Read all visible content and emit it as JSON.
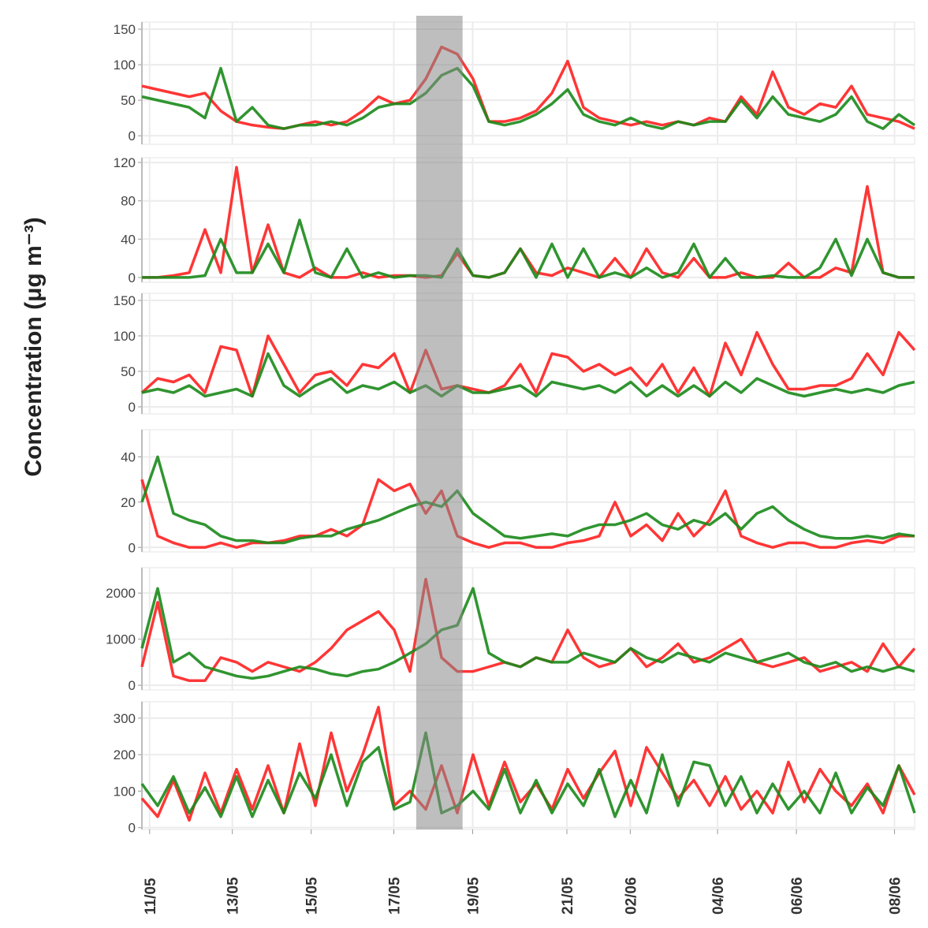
{
  "chart_data": {
    "type": "line",
    "ylabel": "Concentration (μg m⁻³)",
    "x_range": [
      0,
      100
    ],
    "x_ticks": [
      {
        "x": 1,
        "label": "11/05"
      },
      {
        "x": 11.7,
        "label": "13/05"
      },
      {
        "x": 21.9,
        "label": "15/05"
      },
      {
        "x": 32.6,
        "label": "17/05"
      },
      {
        "x": 42.8,
        "label": "19/05"
      },
      {
        "x": 55,
        "label": "21/05"
      },
      {
        "x": 63.2,
        "label": "02/06"
      },
      {
        "x": 74.5,
        "label": "04/06"
      },
      {
        "x": 84.7,
        "label": "06/06"
      },
      {
        "x": 97.4,
        "label": "08/06"
      }
    ],
    "highlight_band": [
      35.5,
      41.5
    ],
    "series_colors": {
      "red": "#ff2020",
      "green": "#1a8a1a"
    },
    "panels": [
      {
        "ylim": [
          -12,
          160
        ],
        "yticks": [
          0,
          50,
          100,
          150
        ],
        "red": [
          70,
          65,
          60,
          55,
          60,
          35,
          20,
          15,
          12,
          10,
          15,
          20,
          15,
          20,
          35,
          55,
          45,
          50,
          80,
          125,
          115,
          80,
          20,
          20,
          25,
          35,
          60,
          105,
          40,
          25,
          20,
          15,
          20,
          15,
          20,
          15,
          25,
          20,
          55,
          30,
          90,
          40,
          30,
          45,
          40,
          70,
          30,
          25,
          20,
          10
        ],
        "green": [
          55,
          50,
          45,
          40,
          25,
          95,
          20,
          40,
          15,
          10,
          15,
          15,
          20,
          15,
          25,
          40,
          45,
          45,
          60,
          85,
          95,
          70,
          20,
          15,
          20,
          30,
          45,
          65,
          30,
          20,
          15,
          25,
          15,
          10,
          20,
          15,
          20,
          20,
          50,
          25,
          55,
          30,
          25,
          20,
          30,
          55,
          20,
          10,
          30,
          15
        ]
      },
      {
        "ylim": [
          -5,
          125
        ],
        "yticks": [
          0,
          40,
          80,
          120
        ],
        "red": [
          0,
          0,
          2,
          5,
          50,
          5,
          115,
          5,
          55,
          5,
          0,
          10,
          0,
          0,
          5,
          0,
          2,
          2,
          0,
          2,
          25,
          2,
          0,
          5,
          30,
          5,
          2,
          10,
          5,
          0,
          20,
          0,
          30,
          5,
          0,
          20,
          0,
          0,
          5,
          0,
          0,
          15,
          0,
          0,
          10,
          5,
          95,
          5,
          0,
          0
        ],
        "green": [
          0,
          0,
          0,
          0,
          2,
          40,
          5,
          5,
          35,
          5,
          60,
          5,
          0,
          30,
          0,
          5,
          0,
          2,
          2,
          0,
          30,
          2,
          0,
          5,
          30,
          0,
          35,
          0,
          30,
          0,
          5,
          0,
          10,
          0,
          5,
          35,
          0,
          20,
          0,
          0,
          2,
          0,
          0,
          10,
          40,
          2,
          40,
          5,
          0,
          0
        ]
      },
      {
        "ylim": [
          -10,
          160
        ],
        "yticks": [
          0,
          50,
          100,
          150
        ],
        "red": [
          20,
          40,
          35,
          45,
          20,
          85,
          80,
          15,
          100,
          60,
          20,
          45,
          50,
          30,
          60,
          55,
          75,
          20,
          80,
          25,
          30,
          25,
          20,
          30,
          60,
          20,
          75,
          70,
          50,
          60,
          45,
          55,
          30,
          60,
          20,
          55,
          15,
          90,
          45,
          105,
          60,
          25,
          25,
          30,
          30,
          40,
          75,
          45,
          105,
          80
        ],
        "green": [
          20,
          25,
          20,
          30,
          15,
          20,
          25,
          15,
          75,
          30,
          15,
          30,
          40,
          20,
          30,
          25,
          35,
          20,
          30,
          15,
          30,
          20,
          20,
          25,
          30,
          15,
          35,
          30,
          25,
          30,
          20,
          35,
          15,
          30,
          15,
          30,
          15,
          35,
          20,
          40,
          30,
          20,
          15,
          20,
          25,
          20,
          25,
          20,
          30,
          35
        ]
      },
      {
        "ylim": [
          -2,
          52
        ],
        "yticks": [
          0,
          20,
          40
        ],
        "red": [
          30,
          5,
          2,
          0,
          0,
          2,
          0,
          2,
          2,
          3,
          5,
          5,
          8,
          5,
          10,
          30,
          25,
          28,
          15,
          25,
          5,
          2,
          0,
          2,
          2,
          0,
          0,
          2,
          3,
          5,
          20,
          5,
          10,
          3,
          15,
          5,
          12,
          25,
          5,
          2,
          0,
          2,
          2,
          0,
          0,
          2,
          3,
          2,
          5,
          5
        ],
        "green": [
          20,
          40,
          15,
          12,
          10,
          5,
          3,
          3,
          2,
          2,
          4,
          5,
          5,
          8,
          10,
          12,
          15,
          18,
          20,
          18,
          25,
          15,
          10,
          5,
          4,
          5,
          6,
          5,
          8,
          10,
          10,
          12,
          15,
          10,
          8,
          12,
          10,
          15,
          8,
          15,
          18,
          12,
          8,
          5,
          4,
          4,
          5,
          4,
          6,
          5
        ]
      },
      {
        "ylim": [
          -100,
          2550
        ],
        "yticks": [
          0,
          1000,
          2000
        ],
        "red": [
          400,
          1800,
          200,
          100,
          100,
          600,
          500,
          300,
          500,
          400,
          300,
          500,
          800,
          1200,
          1400,
          1600,
          1200,
          300,
          2300,
          600,
          300,
          300,
          400,
          500,
          400,
          600,
          500,
          1200,
          600,
          400,
          500,
          800,
          400,
          600,
          900,
          500,
          600,
          800,
          1000,
          500,
          400,
          500,
          600,
          300,
          400,
          500,
          300,
          900,
          400,
          800
        ],
        "green": [
          800,
          2100,
          500,
          700,
          400,
          300,
          200,
          150,
          200,
          300,
          400,
          350,
          250,
          200,
          300,
          350,
          500,
          700,
          900,
          1200,
          1300,
          2100,
          700,
          500,
          400,
          600,
          500,
          500,
          700,
          600,
          500,
          800,
          600,
          500,
          700,
          600,
          500,
          700,
          600,
          500,
          600,
          700,
          500,
          400,
          500,
          300,
          400,
          300,
          400,
          300
        ]
      },
      {
        "ylim": [
          -5,
          345
        ],
        "yticks": [
          0,
          100,
          200,
          300
        ],
        "red": [
          80,
          30,
          130,
          20,
          150,
          40,
          160,
          50,
          170,
          40,
          230,
          60,
          260,
          100,
          200,
          330,
          60,
          100,
          50,
          170,
          40,
          200,
          60,
          180,
          70,
          120,
          50,
          160,
          80,
          150,
          210,
          60,
          220,
          150,
          80,
          130,
          60,
          140,
          50,
          100,
          40,
          180,
          70,
          160,
          100,
          60,
          120,
          40,
          170,
          90
        ],
        "green": [
          120,
          60,
          140,
          40,
          110,
          30,
          140,
          30,
          130,
          40,
          150,
          80,
          200,
          60,
          180,
          220,
          50,
          70,
          260,
          40,
          60,
          100,
          50,
          160,
          40,
          130,
          40,
          120,
          60,
          160,
          30,
          130,
          40,
          200,
          60,
          180,
          170,
          60,
          140,
          40,
          120,
          50,
          100,
          40,
          150,
          40,
          110,
          60,
          170,
          40
        ]
      }
    ]
  }
}
